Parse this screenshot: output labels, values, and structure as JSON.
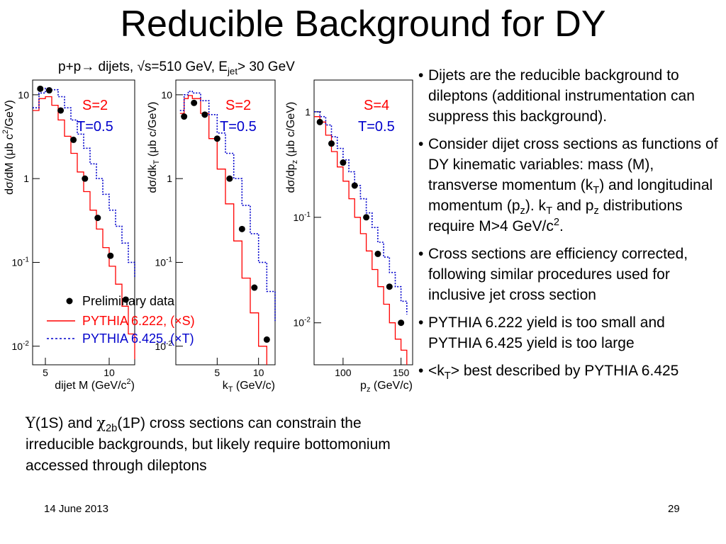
{
  "slide": {
    "title": "Reducible Background for DY",
    "date": "14 June 2013",
    "page_number": "29"
  },
  "plot_title": {
    "text_a": "p+p",
    "text_b": " dijets, ",
    "text_c": "s=510 GeV, E",
    "sub": "jet",
    "text_d": "> 30 GeV"
  },
  "legend": {
    "data": "Preliminary data",
    "pythia_s": "PYTHIA 6.222, (×S)",
    "pythia_t": "PYTHIA 6.425, (×T)",
    "colors": {
      "data": "#000000",
      "pythia_s": "#ff0000",
      "pythia_t": "#0000cc"
    }
  },
  "bullets": {
    "b1": "Dijets are the reducible background to dileptons (additional instrumentation can suppress this background).",
    "b2_a": "Consider dijet cross sections as functions of DY kinematic variables:  mass (M), transverse momentum (k",
    "b2_sub1": "T",
    "b2_b": ") and longitudinal momentum (p",
    "b2_sub2": "z",
    "b2_c": ").  k",
    "b2_sub3": "T",
    "b2_d": " and p",
    "b2_sub4": "z",
    "b2_e": " distributions require M>4 GeV/c",
    "b2_sup": "2",
    "b2_f": ".",
    "b3": "Cross sections are efficiency corrected, following similar procedures used for inclusive jet cross section",
    "b4": "PYTHIA 6.222 yield is too small and PYTHIA 6.425 yield is too large",
    "b5_a": "<k",
    "b5_sub": "T",
    "b5_b": "> best described by PYTHIA 6.425"
  },
  "caption": {
    "ups": "Υ",
    "a": "(1S) and ",
    "chi": "χ",
    "sub": "2b",
    "b": "(1P) cross sections can constrain the irreducible backgrounds, but likely require bottomonium accessed through dileptons"
  },
  "chart_data": [
    {
      "type": "scatter",
      "panel_label": "S=2",
      "panel_label2": "T=0.5",
      "xlabel_a": "dijet M (GeV/c",
      "xlabel_sup": "2",
      "xlabel_b": ")",
      "ylabel_a": "dσ/dM (",
      "ylabel_mu": "μ",
      "ylabel_b": "b c",
      "ylabel_sup": "2",
      "ylabel_c": "/GeV)",
      "xlim": [
        4,
        12
      ],
      "xticks": [
        {
          "v": 5,
          "label": "5"
        },
        {
          "v": 10,
          "label": "10"
        }
      ],
      "ylog": true,
      "ylim": [
        0.006,
        15
      ],
      "yticks": [
        {
          "v": 10,
          "label": "10"
        },
        {
          "v": 1,
          "label": "1"
        },
        {
          "v": 0.1,
          "label": "10",
          "sup": "-1"
        },
        {
          "v": 0.01,
          "label": "10",
          "sup": "-2"
        }
      ],
      "data_points": [
        [
          4.6,
          11.8
        ],
        [
          5.3,
          11.3
        ],
        [
          6.2,
          6.5
        ],
        [
          7.2,
          2.9
        ],
        [
          8.1,
          1.0
        ],
        [
          9.1,
          0.34
        ],
        [
          10.1,
          0.12
        ],
        [
          11.3,
          0.036
        ]
      ],
      "pythia_s": [
        [
          4.0,
          6.5
        ],
        [
          4.5,
          9.0
        ],
        [
          5.0,
          9.5
        ],
        [
          5.5,
          7.5
        ],
        [
          6.0,
          5.0
        ],
        [
          6.5,
          3.2
        ],
        [
          7.0,
          2.0
        ],
        [
          7.5,
          1.2
        ],
        [
          8.0,
          0.7
        ],
        [
          8.5,
          0.42
        ],
        [
          9.0,
          0.25
        ],
        [
          9.5,
          0.15
        ],
        [
          10.0,
          0.09
        ],
        [
          10.5,
          0.055
        ],
        [
          11.0,
          0.03
        ],
        [
          11.5,
          0.014
        ],
        [
          12.0,
          0.007
        ]
      ],
      "pythia_t": [
        [
          4.0,
          7.0
        ],
        [
          4.5,
          10.5
        ],
        [
          5.0,
          12.0
        ],
        [
          5.5,
          11.5
        ],
        [
          6.0,
          9.5
        ],
        [
          6.5,
          7.0
        ],
        [
          7.0,
          5.0
        ],
        [
          7.5,
          3.4
        ],
        [
          8.0,
          2.3
        ],
        [
          8.5,
          1.5
        ],
        [
          9.0,
          1.0
        ],
        [
          9.5,
          0.65
        ],
        [
          10.0,
          0.42
        ],
        [
          10.5,
          0.27
        ],
        [
          11.0,
          0.17
        ],
        [
          11.5,
          0.1
        ],
        [
          12.0,
          0.065
        ]
      ]
    },
    {
      "type": "scatter",
      "panel_label": "S=2",
      "panel_label2": "T=0.5",
      "xlabel_a": "k",
      "xlabel_sub": "T",
      "xlabel_b": " (GeV/c)",
      "ylabel_a": "dσ/dk",
      "ylabel_sub": "T",
      "ylabel_b": " (",
      "ylabel_mu": "μ",
      "ylabel_c": "b c/GeV)",
      "xlim": [
        0,
        12
      ],
      "xticks": [
        {
          "v": 5,
          "label": "5"
        },
        {
          "v": 10,
          "label": "10"
        }
      ],
      "ylog": true,
      "ylim": [
        0.006,
        15
      ],
      "yticks": [
        {
          "v": 10,
          "label": "10"
        },
        {
          "v": 1,
          "label": "1"
        },
        {
          "v": 0.1,
          "label": "10",
          "sup": "-1"
        },
        {
          "v": 0.01,
          "label": "10",
          "sup": "-2"
        }
      ],
      "data_points": [
        [
          1.0,
          5.5
        ],
        [
          2.2,
          8.0
        ],
        [
          3.5,
          5.8
        ],
        [
          5.0,
          3.0
        ],
        [
          6.5,
          1.0
        ],
        [
          8.0,
          0.25
        ],
        [
          9.5,
          0.05
        ],
        [
          11.0,
          0.012
        ]
      ],
      "pythia_s": [
        [
          0.5,
          6.0
        ],
        [
          1.0,
          9.0
        ],
        [
          1.5,
          9.8
        ],
        [
          2.0,
          9.0
        ],
        [
          3.0,
          6.0
        ],
        [
          4.0,
          3.0
        ],
        [
          5.0,
          1.3
        ],
        [
          6.0,
          0.5
        ],
        [
          7.0,
          0.18
        ],
        [
          8.0,
          0.065
        ],
        [
          9.0,
          0.025
        ],
        [
          10.0,
          0.01
        ],
        [
          11.0,
          0.006
        ]
      ],
      "pythia_t": [
        [
          0.5,
          6.5
        ],
        [
          1.0,
          10.0
        ],
        [
          1.5,
          11.0
        ],
        [
          2.0,
          10.5
        ],
        [
          3.0,
          8.5
        ],
        [
          4.0,
          5.8
        ],
        [
          5.0,
          3.5
        ],
        [
          6.0,
          2.0
        ],
        [
          7.0,
          1.0
        ],
        [
          8.0,
          0.48
        ],
        [
          9.0,
          0.22
        ],
        [
          10.0,
          0.1
        ],
        [
          11.0,
          0.045
        ],
        [
          12.0,
          0.02
        ]
      ]
    },
    {
      "type": "scatter",
      "panel_label": "S=4",
      "panel_label2": "T=0.5",
      "xlabel_a": "p",
      "xlabel_sub": "z",
      "xlabel_b": " (GeV/c)",
      "ylabel_a": "dσ/dp",
      "ylabel_sub": "z",
      "ylabel_b": " (",
      "ylabel_mu": "μ",
      "ylabel_c": "b c/GeV)",
      "xlim": [
        75,
        160
      ],
      "xticks": [
        {
          "v": 100,
          "label": "100"
        },
        {
          "v": 150,
          "label": "150"
        }
      ],
      "ylog": true,
      "ylim": [
        0.004,
        2
      ],
      "yticks": [
        {
          "v": 1,
          "label": "1"
        },
        {
          "v": 0.1,
          "label": "10",
          "sup": "-1"
        },
        {
          "v": 0.01,
          "label": "10",
          "sup": "-2"
        }
      ],
      "data_points": [
        [
          80,
          0.8
        ],
        [
          90,
          0.5
        ],
        [
          100,
          0.33
        ],
        [
          110,
          0.2
        ],
        [
          120,
          0.1
        ],
        [
          130,
          0.045
        ],
        [
          140,
          0.022
        ],
        [
          150,
          0.01
        ]
      ],
      "pythia_s": [
        [
          75,
          0.9
        ],
        [
          80,
          0.8
        ],
        [
          85,
          0.6
        ],
        [
          90,
          0.42
        ],
        [
          95,
          0.3
        ],
        [
          100,
          0.22
        ],
        [
          105,
          0.15
        ],
        [
          110,
          0.1
        ],
        [
          115,
          0.07
        ],
        [
          120,
          0.048
        ],
        [
          125,
          0.032
        ],
        [
          130,
          0.022
        ],
        [
          135,
          0.015
        ],
        [
          140,
          0.01
        ],
        [
          145,
          0.007
        ],
        [
          150,
          0.0055
        ],
        [
          155,
          0.004
        ]
      ],
      "pythia_t": [
        [
          75,
          1.0
        ],
        [
          80,
          0.9
        ],
        [
          85,
          0.75
        ],
        [
          90,
          0.58
        ],
        [
          95,
          0.45
        ],
        [
          100,
          0.35
        ],
        [
          105,
          0.27
        ],
        [
          110,
          0.2
        ],
        [
          115,
          0.15
        ],
        [
          120,
          0.11
        ],
        [
          125,
          0.08
        ],
        [
          130,
          0.058
        ],
        [
          135,
          0.042
        ],
        [
          140,
          0.03
        ],
        [
          145,
          0.022
        ],
        [
          150,
          0.016
        ],
        [
          155,
          0.012
        ]
      ]
    }
  ]
}
